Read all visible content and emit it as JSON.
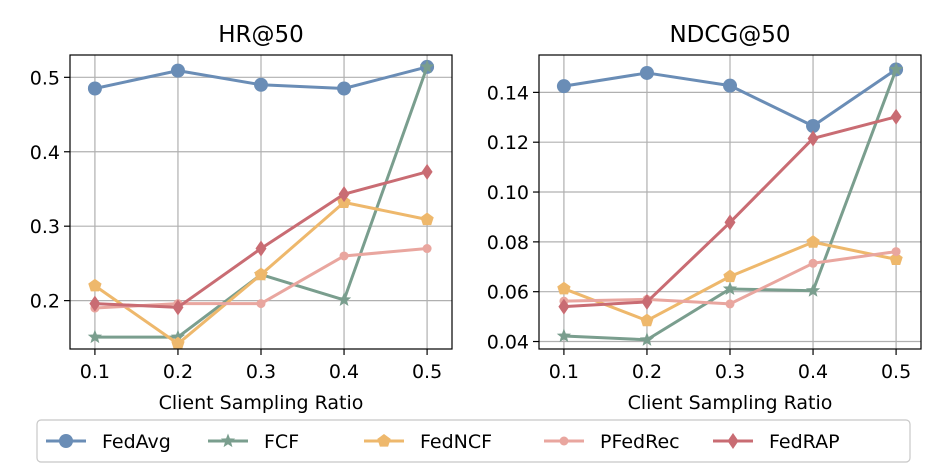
{
  "chart_data": [
    {
      "type": "line",
      "title": "HR@50",
      "xlabel": "Client Sampling Ratio",
      "ylabel": "",
      "x": [
        0.1,
        0.2,
        0.3,
        0.4,
        0.5
      ],
      "x_ticks": [
        "0.1",
        "0.2",
        "0.3",
        "0.4",
        "0.5"
      ],
      "xlim": [
        0.07,
        0.53
      ],
      "y_ticks": [
        0.2,
        0.3,
        0.4,
        0.5
      ],
      "y_tick_labels": [
        "0.2",
        "0.3",
        "0.4",
        "0.5"
      ],
      "ylim": [
        0.135,
        0.53
      ],
      "grid": true,
      "series": [
        {
          "name": "FedAvg",
          "values": [
            0.485,
            0.509,
            0.49,
            0.485,
            0.514
          ]
        },
        {
          "name": "FCF",
          "values": [
            0.151,
            0.151,
            0.235,
            0.201,
            0.514
          ]
        },
        {
          "name": "FedNCF",
          "values": [
            0.22,
            0.142,
            0.235,
            0.332,
            0.309
          ]
        },
        {
          "name": "PFedRec",
          "values": [
            0.19,
            0.196,
            0.196,
            0.26,
            0.27
          ]
        },
        {
          "name": "FedRAP",
          "values": [
            0.196,
            0.191,
            0.27,
            0.343,
            0.373
          ]
        }
      ]
    },
    {
      "type": "line",
      "title": "NDCG@50",
      "xlabel": "Client Sampling Ratio",
      "ylabel": "",
      "x": [
        0.1,
        0.2,
        0.3,
        0.4,
        0.5
      ],
      "x_ticks": [
        "0.1",
        "0.2",
        "0.3",
        "0.4",
        "0.5"
      ],
      "xlim": [
        0.07,
        0.53
      ],
      "y_ticks": [
        0.04,
        0.06,
        0.08,
        0.1,
        0.12,
        0.14
      ],
      "y_tick_labels": [
        "0.04",
        "0.06",
        "0.08",
        "0.10",
        "0.12",
        "0.14"
      ],
      "ylim": [
        0.037,
        0.155
      ],
      "grid": true,
      "series": [
        {
          "name": "FedAvg",
          "values": [
            0.1425,
            0.1478,
            0.1427,
            0.1265,
            0.1492
          ]
        },
        {
          "name": "FCF",
          "values": [
            0.0422,
            0.0407,
            0.0611,
            0.0604,
            0.1492
          ]
        },
        {
          "name": "FedNCF",
          "values": [
            0.0612,
            0.0484,
            0.0661,
            0.0799,
            0.073
          ]
        },
        {
          "name": "PFedRec",
          "values": [
            0.0562,
            0.0569,
            0.0551,
            0.0714,
            0.0761
          ]
        },
        {
          "name": "FedRAP",
          "values": [
            0.054,
            0.0559,
            0.0878,
            0.1215,
            0.1302
          ]
        }
      ]
    }
  ],
  "legend": {
    "location": "bottom",
    "entries": [
      {
        "name": "FedAvg",
        "color": "#6a8db6",
        "marker": "circle"
      },
      {
        "name": "FCF",
        "color": "#7a9e8e",
        "marker": "star"
      },
      {
        "name": "FedNCF",
        "color": "#eeb86c",
        "marker": "pentagon"
      },
      {
        "name": "PFedRec",
        "color": "#e9a69f",
        "marker": "small-circle"
      },
      {
        "name": "FedRAP",
        "color": "#c96c73",
        "marker": "diamond"
      }
    ]
  }
}
